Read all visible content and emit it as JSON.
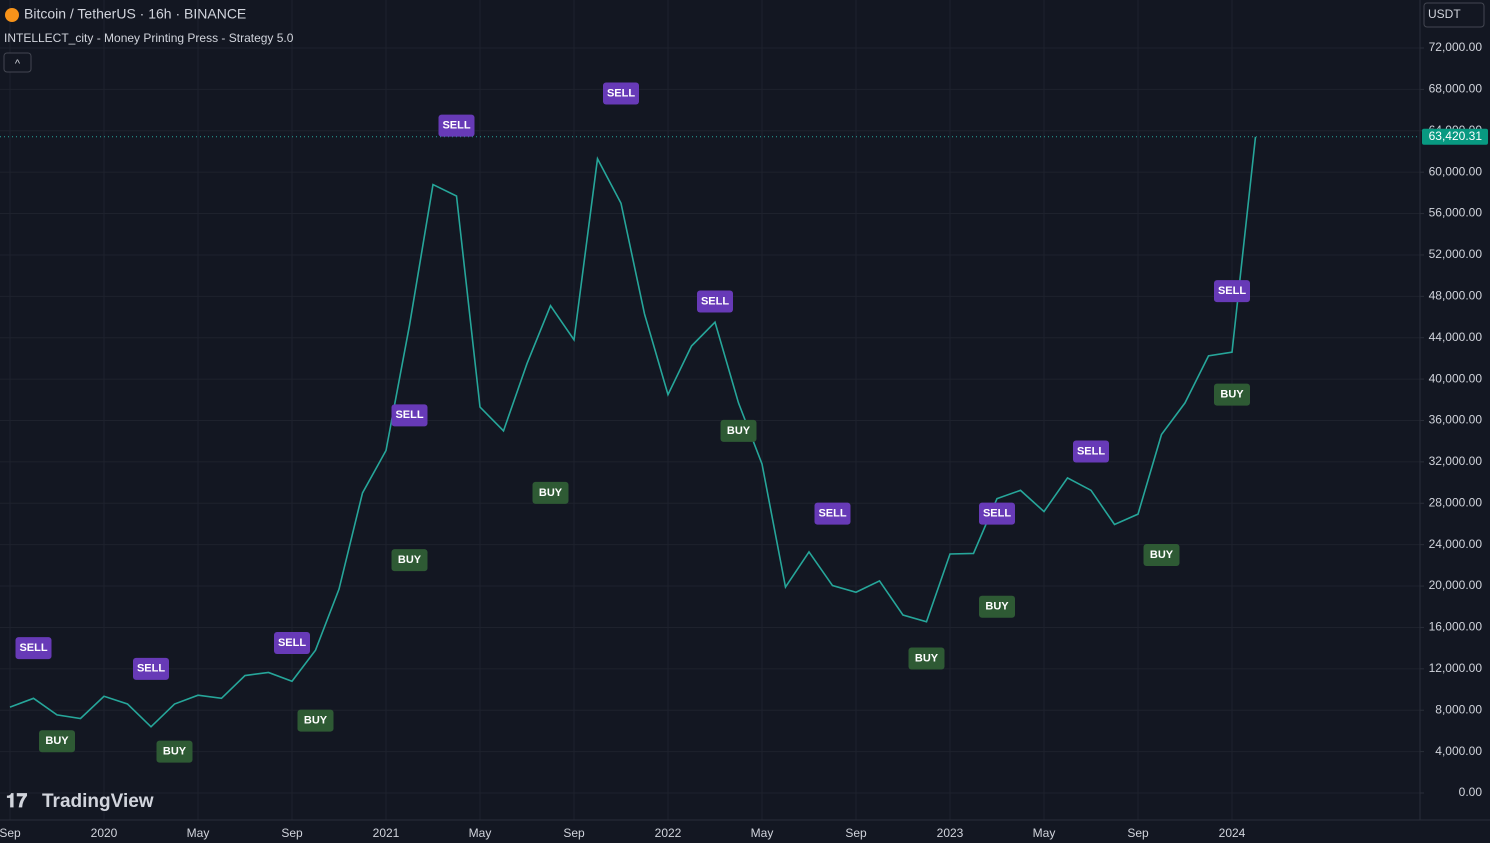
{
  "header": {
    "symbol": "Bitcoin / TetherUS · 16h · BINANCE",
    "indicator": "INTELLECT_city - Money Printing Press - Strategy 5.0",
    "collapse_button": "^",
    "currency": "USDT",
    "brand": "TradingView"
  },
  "chart_data": {
    "type": "line",
    "categories": [
      "Sep",
      null,
      null,
      null,
      "2020",
      null,
      null,
      null,
      "May",
      null,
      null,
      null,
      "Sep",
      null,
      null,
      null,
      "2021",
      null,
      null,
      null,
      "May",
      null,
      null,
      null,
      "Sep",
      null,
      null,
      null,
      "2022",
      null,
      null,
      null,
      "May",
      null,
      null,
      null,
      "Sep",
      null,
      null,
      null,
      "2023",
      null,
      null,
      null,
      "May",
      null,
      null,
      null,
      "Sep",
      null,
      null,
      null,
      "2024",
      null
    ],
    "values": [
      8300,
      9150,
      7550,
      7200,
      9350,
      8600,
      6400,
      8600,
      9450,
      9150,
      11350,
      11650,
      10800,
      13800,
      19700,
      29000,
      33100,
      45200,
      58800,
      57700,
      37300,
      35000,
      41500,
      47100,
      43800,
      61300,
      57000,
      46300,
      38500,
      43200,
      45500,
      37700,
      31800,
      19900,
      23300,
      20050,
      19400,
      20500,
      17200,
      16550,
      23100,
      23150,
      28450,
      29250,
      27200,
      30450,
      29250,
      25950,
      26950,
      34650,
      37700,
      42250,
      42600,
      63420
    ],
    "color": "#26a69a",
    "ylim": [
      -2610,
      76640
    ],
    "yticks": [
      {
        "value": 0,
        "label": "0.00"
      },
      {
        "value": 4000,
        "label": "4,000.00"
      },
      {
        "value": 8000,
        "label": "8,000.00"
      },
      {
        "value": 12000,
        "label": "12,000.00"
      },
      {
        "value": 16000,
        "label": "16,000.00"
      },
      {
        "value": 20000,
        "label": "20,000.00"
      },
      {
        "value": 24000,
        "label": "24,000.00"
      },
      {
        "value": 28000,
        "label": "28,000.00"
      },
      {
        "value": 32000,
        "label": "32,000.00"
      },
      {
        "value": 36000,
        "label": "36,000.00"
      },
      {
        "value": 40000,
        "label": "40,000.00"
      },
      {
        "value": 44000,
        "label": "44,000.00"
      },
      {
        "value": 48000,
        "label": "48,000.00"
      },
      {
        "value": 52000,
        "label": "52,000.00"
      },
      {
        "value": 56000,
        "label": "56,000.00"
      },
      {
        "value": 60000,
        "label": "60,000.00"
      },
      {
        "value": 64000,
        "label": "64,000.00"
      },
      {
        "value": 68000,
        "label": "68,000.00"
      },
      {
        "value": 72000,
        "label": "72,000.00"
      }
    ],
    "grid": true,
    "last_price": {
      "value": 63420.31,
      "label": "63,420.31"
    },
    "signals": [
      {
        "text": "SELL",
        "at": 1,
        "value": 14000
      },
      {
        "text": "BUY",
        "at": 2,
        "value": 5000
      },
      {
        "text": "SELL",
        "at": 6,
        "value": 12000
      },
      {
        "text": "BUY",
        "at": 7,
        "value": 4000
      },
      {
        "text": "SELL",
        "at": 12,
        "value": 14500
      },
      {
        "text": "BUY",
        "at": 13,
        "value": 7000
      },
      {
        "text": "SELL",
        "at": 17,
        "value": 36500
      },
      {
        "text": "BUY",
        "at": 17,
        "value": 22500
      },
      {
        "text": "SELL",
        "at": 19,
        "value": 64500
      },
      {
        "text": "BUY",
        "at": 23,
        "value": 29000
      },
      {
        "text": "SELL",
        "at": 26,
        "value": 67600
      },
      {
        "text": "SELL",
        "at": 30,
        "value": 47500
      },
      {
        "text": "BUY",
        "at": 31,
        "value": 35000
      },
      {
        "text": "SELL",
        "at": 35,
        "value": 27000
      },
      {
        "text": "BUY",
        "at": 39,
        "value": 13000
      },
      {
        "text": "SELL",
        "at": 42,
        "value": 27000
      },
      {
        "text": "BUY",
        "at": 42,
        "value": 18000
      },
      {
        "text": "SELL",
        "at": 46,
        "value": 33000
      },
      {
        "text": "BUY",
        "at": 49,
        "value": 23000
      },
      {
        "text": "SELL",
        "at": 52,
        "value": 48500
      },
      {
        "text": "BUY",
        "at": 52,
        "value": 38500
      }
    ]
  }
}
